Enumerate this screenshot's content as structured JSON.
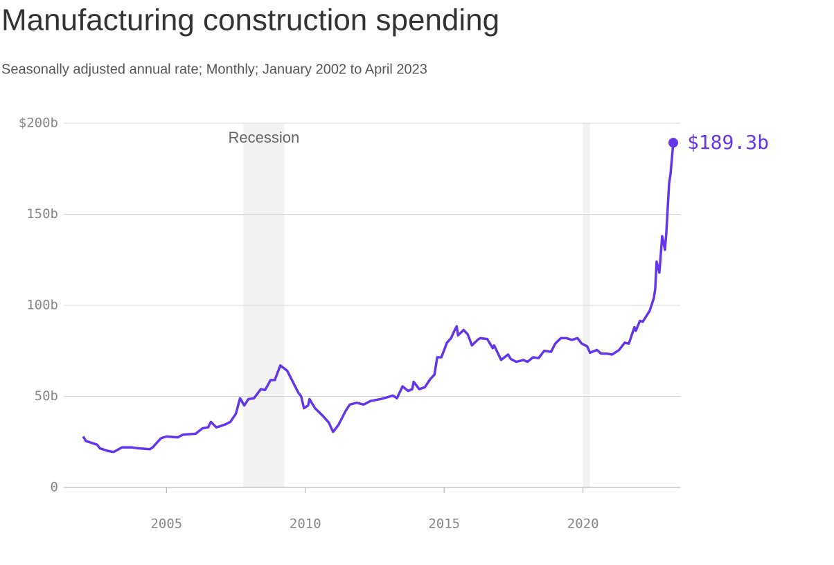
{
  "chart_data": {
    "type": "line",
    "title": "Manufacturing construction spending",
    "subtitle": "Seasonally adjusted annual rate; Monthly; January 2002 to April 2023",
    "x": [
      2002.0,
      2002.1,
      2002.5,
      2002.6,
      2002.9,
      2003.1,
      2003.4,
      2003.75,
      2004.0,
      2004.4,
      2004.5,
      2004.8,
      2005.0,
      2005.4,
      2005.6,
      2006.05,
      2006.3,
      2006.5,
      2006.6,
      2006.8,
      2007.1,
      2007.3,
      2007.5,
      2007.65,
      2007.8,
      2007.95,
      2008.15,
      2008.4,
      2008.55,
      2008.75,
      2008.9,
      2009.1,
      2009.35,
      2009.55,
      2009.75,
      2009.85,
      2009.95,
      2010.1,
      2010.15,
      2010.35,
      2010.65,
      2010.85,
      2011.0,
      2011.2,
      2011.45,
      2011.6,
      2011.85,
      2012.1,
      2012.35,
      2012.7,
      2012.95,
      2013.15,
      2013.3,
      2013.5,
      2013.7,
      2013.85,
      2013.9,
      2014.1,
      2014.3,
      2014.5,
      2014.65,
      2014.75,
      2014.9,
      2015.1,
      2015.25,
      2015.35,
      2015.45,
      2015.5,
      2015.7,
      2015.85,
      2016.0,
      2016.2,
      2016.3,
      2016.55,
      2016.75,
      2016.8,
      2017.05,
      2017.3,
      2017.4,
      2017.6,
      2017.85,
      2018.0,
      2018.2,
      2018.4,
      2018.6,
      2018.85,
      2019.0,
      2019.2,
      2019.4,
      2019.6,
      2019.8,
      2019.95,
      2020.15,
      2020.25,
      2020.5,
      2020.65,
      2020.85,
      2021.05,
      2021.3,
      2021.5,
      2021.65,
      2021.85,
      2021.9,
      2022.05,
      2022.15,
      2022.4,
      2022.55,
      2022.6,
      2022.65,
      2022.75,
      2022.85,
      2022.95,
      2023.0,
      2023.1,
      2023.15,
      2023.25
    ],
    "series": [
      {
        "color": "#6435ea",
        "values": [
          28,
          25.5,
          23.5,
          21.5,
          20,
          19.5,
          22,
          22,
          21.5,
          21,
          22,
          27,
          28,
          27.5,
          29,
          29.5,
          32.5,
          33,
          36,
          33,
          34.5,
          36,
          40.5,
          49,
          45,
          48.5,
          49,
          54,
          53.5,
          59,
          59,
          67,
          64,
          58,
          52,
          50,
          43.5,
          45,
          48.5,
          43.5,
          39,
          35.5,
          30.5,
          34.5,
          42,
          45.5,
          46.5,
          45.5,
          47.5,
          48.5,
          49.5,
          50.5,
          49,
          55.5,
          53,
          54,
          58,
          54,
          55,
          59.5,
          62,
          71.5,
          71.5,
          79.5,
          82,
          85.5,
          88.5,
          83.5,
          86.5,
          84,
          78,
          81,
          82,
          81.5,
          76.5,
          78,
          70,
          73,
          70.5,
          69,
          70,
          69,
          71.5,
          71,
          75,
          74.5,
          79,
          82,
          82,
          81,
          82,
          79,
          77.5,
          74,
          75.5,
          73.5,
          73.5,
          73,
          75.5,
          79.5,
          79,
          88,
          86,
          91.5,
          91,
          97,
          104,
          109,
          124,
          118,
          138,
          130.5,
          140,
          167,
          172,
          189.3
        ]
      }
    ],
    "end_label": "$189.3b",
    "shaded_periods": [
      [
        2007.77,
        2009.24
      ],
      [
        2020.0,
        2020.25
      ]
    ],
    "shade_label": "Recession",
    "xlim": [
      2001.3,
      2023.5
    ],
    "xticks": [
      2005,
      2010,
      2015,
      2020
    ],
    "ylim": [
      0,
      200
    ],
    "yticks": [
      {
        "value": 0,
        "label": "0"
      },
      {
        "value": 50,
        "label": "50b"
      },
      {
        "value": 100,
        "label": "100b"
      },
      {
        "value": 150,
        "label": "150b"
      },
      {
        "value": 200,
        "label": "$200b"
      }
    ],
    "grid": true
  }
}
